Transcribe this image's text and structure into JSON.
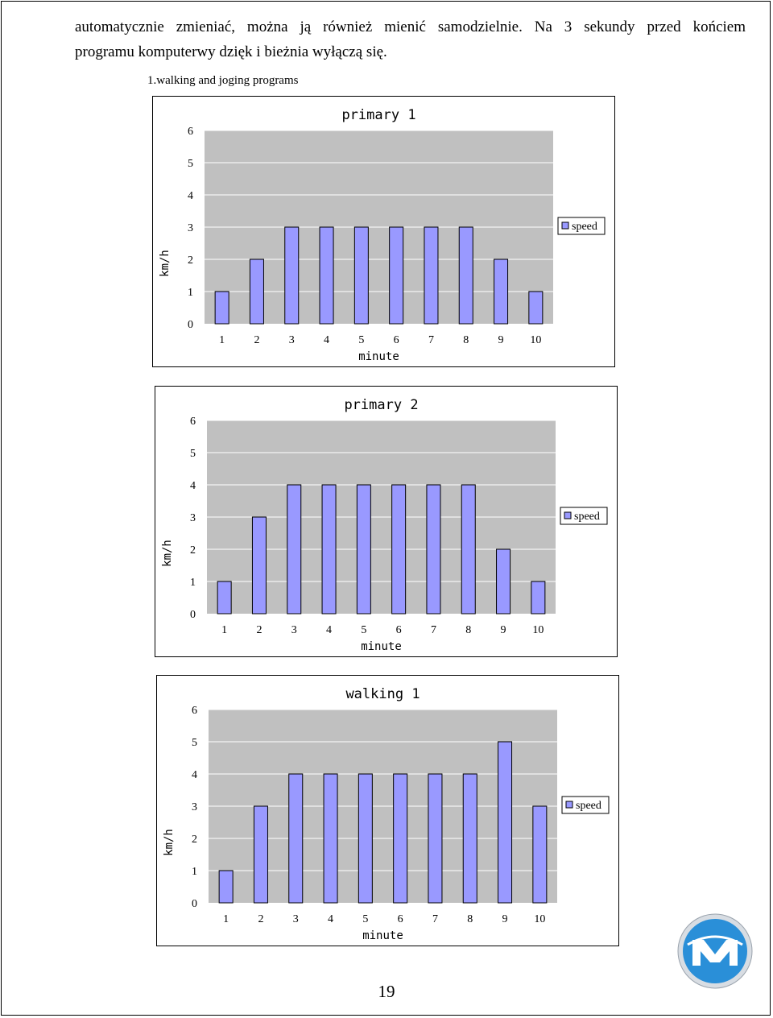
{
  "text": {
    "line1": "automatycznie zmieniać, można ją również mienić samodzielnie. Na 3 sekundy przed końciem",
    "line2": "programu komputerwy dzięk i bieżnia wyłączą się.",
    "section_heading": "1.walking and joging programs",
    "page_number": "19"
  },
  "logo": {
    "icon": "m-logo-icon",
    "colors": {
      "outer": "#d8dde3",
      "inner": "#2a8fd8",
      "letter": "#ffffff"
    }
  },
  "colors": {
    "bar_fill": "#9999ff",
    "plot_bg": "#c0c0c0",
    "grid": "#ffffff",
    "frame": "#000000"
  },
  "chart_data": [
    {
      "type": "bar",
      "title": "primary 1",
      "xlabel": "minute",
      "ylabel": "km/h",
      "categories": [
        "1",
        "2",
        "3",
        "4",
        "5",
        "6",
        "7",
        "8",
        "9",
        "10"
      ],
      "series": [
        {
          "name": "speed",
          "values": [
            1,
            2,
            3,
            3,
            3,
            3,
            3,
            3,
            2,
            1
          ]
        }
      ],
      "yticks": [
        "0",
        "1",
        "2",
        "3",
        "4",
        "5",
        "6"
      ],
      "ylim": [
        0,
        6
      ],
      "grid": true,
      "legend": "right"
    },
    {
      "type": "bar",
      "title": "primary 2",
      "xlabel": "minute",
      "ylabel": "km/h",
      "categories": [
        "1",
        "2",
        "3",
        "4",
        "5",
        "6",
        "7",
        "8",
        "9",
        "10"
      ],
      "series": [
        {
          "name": "speed",
          "values": [
            1,
            3,
            4,
            4,
            4,
            4,
            4,
            4,
            2,
            1
          ]
        }
      ],
      "yticks": [
        "0",
        "1",
        "2",
        "3",
        "4",
        "5",
        "6"
      ],
      "ylim": [
        0,
        6
      ],
      "grid": true,
      "legend": "right"
    },
    {
      "type": "bar",
      "title": "walking 1",
      "xlabel": "minute",
      "ylabel": "km/h",
      "categories": [
        "1",
        "2",
        "3",
        "4",
        "5",
        "6",
        "7",
        "8",
        "9",
        "10"
      ],
      "series": [
        {
          "name": "speed",
          "values": [
            1,
            3,
            4,
            4,
            4,
            4,
            4,
            4,
            5,
            3
          ]
        }
      ],
      "yticks": [
        "0",
        "1",
        "2",
        "3",
        "4",
        "5",
        "6"
      ],
      "ylim": [
        0,
        6
      ],
      "grid": true,
      "legend": "right"
    }
  ]
}
